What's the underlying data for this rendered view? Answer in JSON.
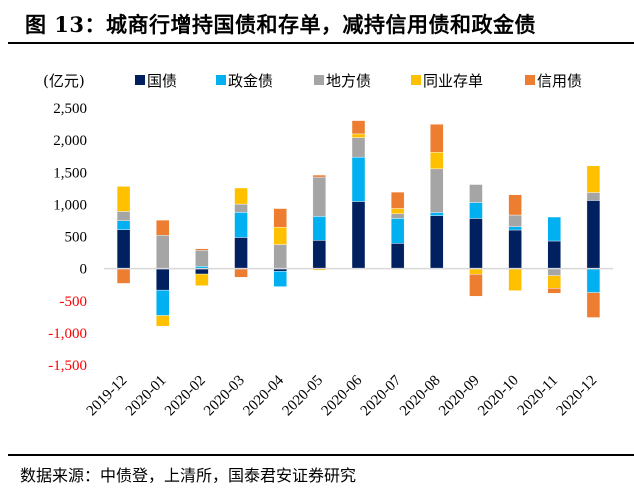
{
  "title": "图 13：城商行增持国债和存单，减持信用债和政金债",
  "source": "数据来源：中债登，上清所，国泰君安证券研究",
  "chart_data": {
    "type": "bar",
    "stacked": true,
    "title": "图 13：城商行增持国债和存单，减持信用债和政金债",
    "ylabel": "(亿元)",
    "xlabel": "",
    "ylim": [
      -1500,
      2500
    ],
    "yticks": [
      2500,
      2000,
      1500,
      1000,
      500,
      0,
      -500,
      -1000,
      -1500
    ],
    "ytick_labels": [
      "2,500",
      "2,000",
      "1,500",
      "1,000",
      "500",
      "0",
      "-500",
      "-1,000",
      "-1,500"
    ],
    "negative_tick_color": "#FF0000",
    "grid": false,
    "legend_position": "top",
    "categories": [
      "2019-12",
      "2020-01",
      "2020-02",
      "2020-03",
      "2020-04",
      "2020-05",
      "2020-06",
      "2020-07",
      "2020-08",
      "2020-09",
      "2020-10",
      "2020-11",
      "2020-12"
    ],
    "series": [
      {
        "name": "国债",
        "color": "#002060",
        "values": [
          605,
          -335,
          -85,
          485,
          -40,
          440,
          1045,
          393,
          823,
          781,
          601,
          430,
          1061
        ]
      },
      {
        "name": "政金债",
        "color": "#00B0F0",
        "values": [
          140,
          -395,
          35,
          390,
          -240,
          373,
          690,
          388,
          51,
          248,
          51,
          373,
          -373
        ]
      },
      {
        "name": "地方债",
        "color": "#A5A5A5",
        "values": [
          145,
          520,
          250,
          130,
          375,
          612,
          305,
          73,
          679,
          280,
          182,
          -109,
          124
        ]
      },
      {
        "name": "同业存单",
        "color": "#FFC000",
        "values": [
          390,
          -165,
          -180,
          250,
          270,
          -25,
          57,
          82,
          259,
          -88,
          -342,
          -197,
          415
        ]
      },
      {
        "name": "信用债",
        "color": "#ED7D31",
        "values": [
          -230,
          235,
          25,
          -135,
          290,
          31,
          207,
          255,
          435,
          -342,
          315,
          -78,
          -388
        ]
      }
    ]
  }
}
